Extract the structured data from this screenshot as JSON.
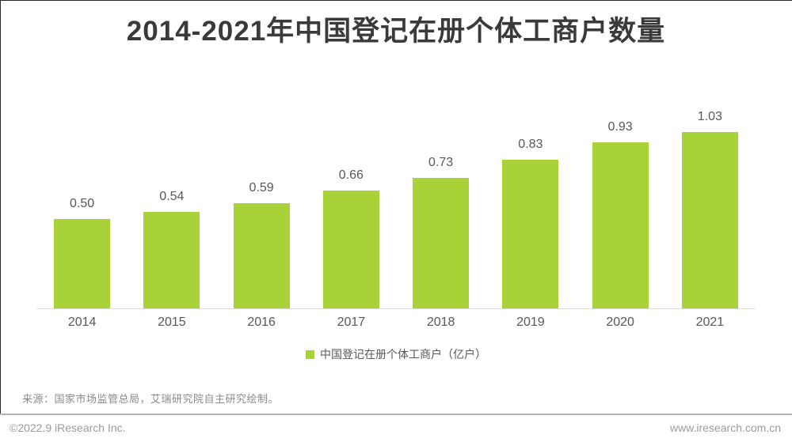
{
  "title": "2014-2021年中国登记在册个体工商户数量",
  "chart_data": {
    "type": "bar",
    "title": "2014-2021年中国登记在册个体工商户数量",
    "categories": [
      "2014",
      "2015",
      "2016",
      "2017",
      "2018",
      "2019",
      "2020",
      "2021"
    ],
    "values": [
      0.5,
      0.54,
      0.59,
      0.66,
      0.73,
      0.83,
      0.93,
      1.03
    ],
    "unit": "亿户",
    "xlabel": "",
    "ylabel": "",
    "ylim": [
      0,
      1.1
    ],
    "grid": false,
    "bar_color": "#a9d138",
    "legend_position": "bottom",
    "legend_entries": [
      "中国登记在册个体工商户（亿户）"
    ],
    "data_labels_shown": true
  },
  "legend": {
    "label": "中国登记在册个体工商户（亿户）",
    "swatch_color": "#a9d138",
    "swatch_icon": "square-icon"
  },
  "source_note": "来源：国家市场监管总局，艾瑞研究院自主研究绘制。",
  "footer": {
    "copyright": "©2022.9 iResearch Inc.",
    "website": "www.iresearch.com.cn"
  },
  "colors": {
    "bar": "#a9d138",
    "title_text": "#3a3a3a",
    "label_text": "#595757",
    "axis_line": "#d9d9d9",
    "source_text": "#8a8a8a",
    "footer_text": "#9b9b9b",
    "footer_rule": "#b3b3b3"
  }
}
